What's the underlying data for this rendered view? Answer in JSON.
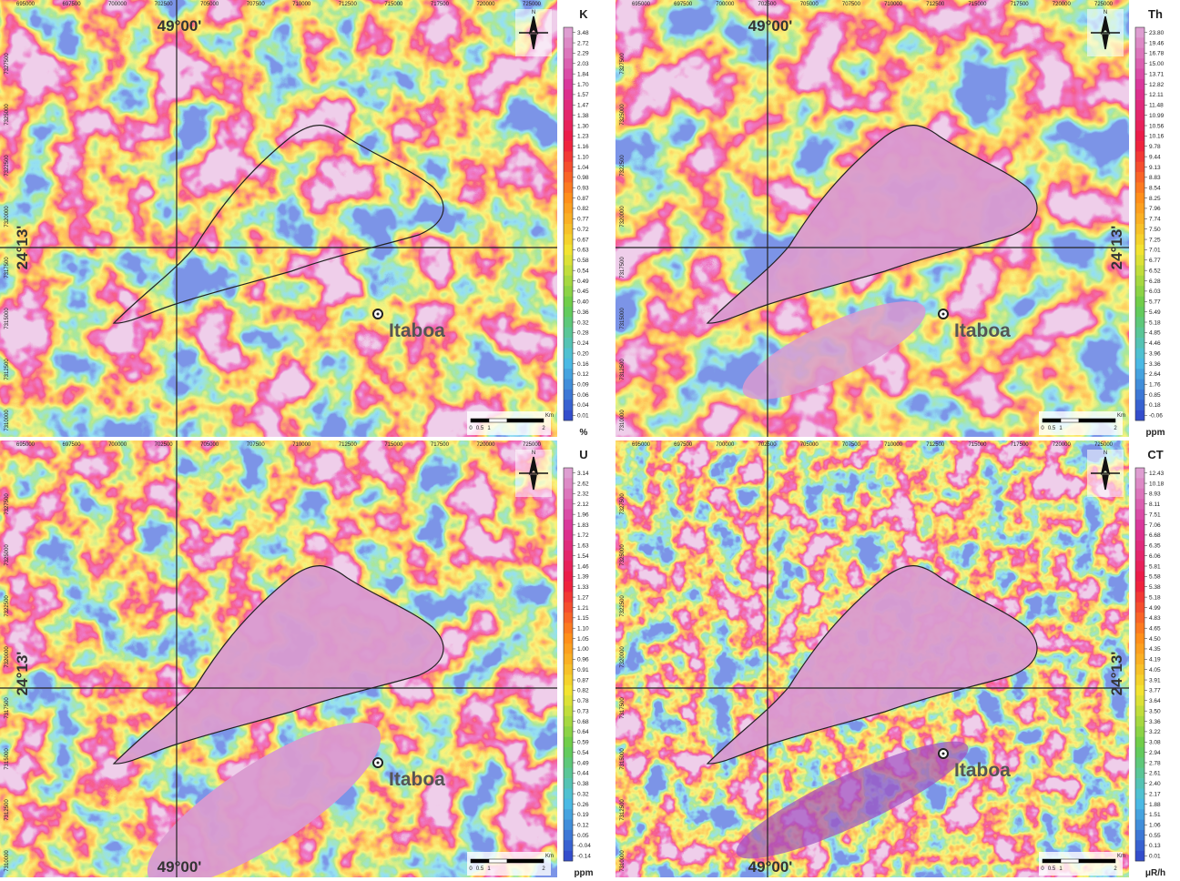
{
  "panels": [
    {
      "element": "K",
      "unit": "%",
      "scale_labels": [
        "3.48",
        "2.72",
        "2.29",
        "2.03",
        "1.84",
        "1.70",
        "1.57",
        "1.47",
        "1.38",
        "1.30",
        "1.23",
        "1.16",
        "1.10",
        "1.04",
        "0.98",
        "0.93",
        "0.87",
        "0.82",
        "0.77",
        "0.72",
        "0.67",
        "0.63",
        "0.58",
        "0.54",
        "0.49",
        "0.45",
        "0.40",
        "0.36",
        "0.32",
        "0.28",
        "0.24",
        "0.20",
        "0.16",
        "0.12",
        "0.09",
        "0.06",
        "0.04",
        "0.01"
      ]
    },
    {
      "element": "Th",
      "unit": "ppm",
      "scale_labels": [
        "23.80",
        "19.46",
        "16.78",
        "15.00",
        "13.71",
        "12.82",
        "12.11",
        "11.48",
        "10.99",
        "10.56",
        "10.16",
        "9.78",
        "9.44",
        "9.13",
        "8.83",
        "8.54",
        "8.25",
        "7.96",
        "7.74",
        "7.50",
        "7.25",
        "7.01",
        "6.77",
        "6.52",
        "6.28",
        "6.03",
        "5.77",
        "5.49",
        "5.18",
        "4.85",
        "4.46",
        "3.96",
        "3.36",
        "2.64",
        "1.76",
        "0.85",
        "0.18",
        "-0.06"
      ]
    },
    {
      "element": "U",
      "unit": "ppm",
      "scale_labels": [
        "3.14",
        "2.62",
        "2.32",
        "2.12",
        "1.96",
        "1.83",
        "1.72",
        "1.63",
        "1.54",
        "1.46",
        "1.39",
        "1.33",
        "1.27",
        "1.21",
        "1.15",
        "1.10",
        "1.05",
        "1.00",
        "0.96",
        "0.91",
        "0.87",
        "0.82",
        "0.78",
        "0.73",
        "0.68",
        "0.64",
        "0.59",
        "0.54",
        "0.49",
        "0.44",
        "0.38",
        "0.32",
        "0.26",
        "0.19",
        "0.12",
        "0.05",
        "-0.04",
        "-0.14"
      ]
    },
    {
      "element": "CT",
      "unit": "μR/h",
      "scale_labels": [
        "12.43",
        "10.18",
        "8.93",
        "8.11",
        "7.51",
        "7.06",
        "6.68",
        "6.35",
        "6.06",
        "5.81",
        "5.58",
        "5.38",
        "5.18",
        "4.99",
        "4.83",
        "4.65",
        "4.50",
        "4.35",
        "4.19",
        "4.05",
        "3.91",
        "3.77",
        "3.64",
        "3.50",
        "3.36",
        "3.22",
        "3.08",
        "2.94",
        "2.78",
        "2.61",
        "2.40",
        "2.17",
        "1.88",
        "1.51",
        "1.06",
        "0.55",
        "0.13",
        "0.01"
      ]
    }
  ],
  "grid": {
    "x_ticks": [
      "695000",
      "697500",
      "700000",
      "702500",
      "705000",
      "707500",
      "710000",
      "712500",
      "715000",
      "717500",
      "720000",
      "725000"
    ],
    "y_ticks": [
      "7327500",
      "7325000",
      "7322500",
      "7320000",
      "7317500",
      "7315000",
      "7312500",
      "7310000"
    ]
  },
  "longitude_label": "49°00'",
  "latitude_label": "24°13'",
  "place": "Itaboa",
  "north": "N",
  "scale_bar": [
    "0",
    "0.5",
    "1",
    "2"
  ],
  "scale_unit": "Km"
}
